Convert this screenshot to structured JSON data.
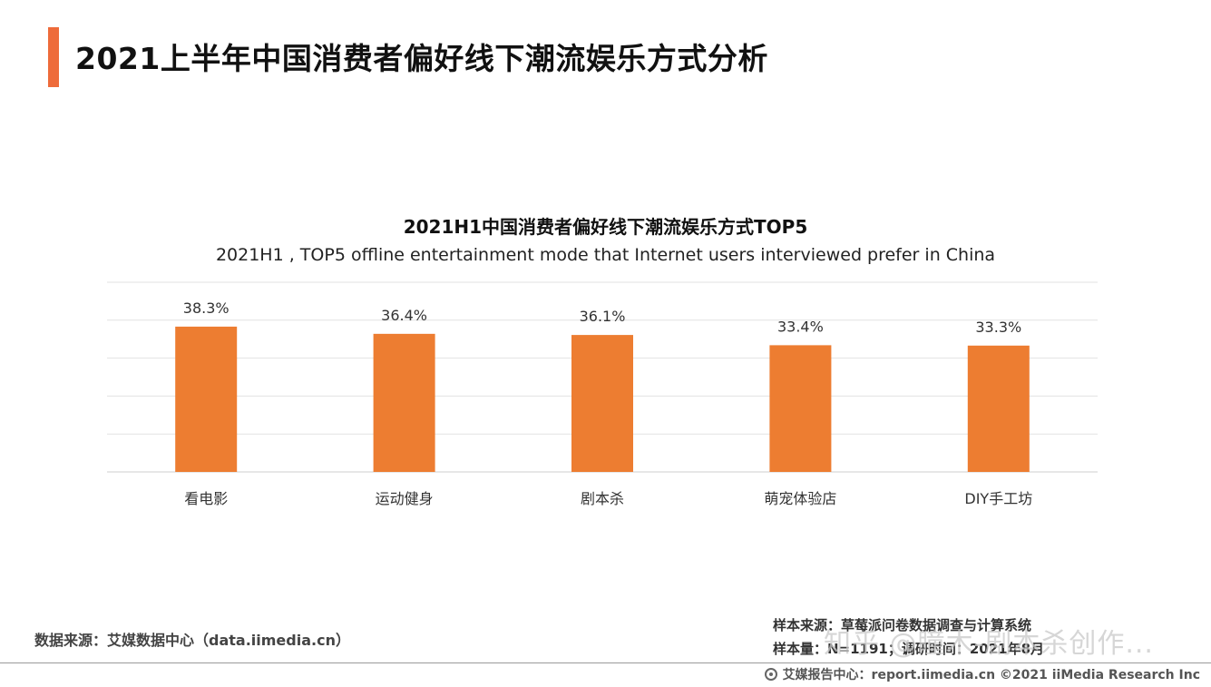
{
  "page": {
    "title": "2021上半年中国消费者偏好线下潮流娱乐方式分析",
    "accent_color": "#ee6b3a"
  },
  "chart_data": {
    "type": "bar",
    "title": "2021H1中国消费者偏好线下潮流娱乐方式TOP5",
    "subtitle": "2021H1 , TOP5 offline entertainment mode that Internet users interviewed prefer in China",
    "categories": [
      "看电影",
      "运动健身",
      "剧本杀",
      "萌宠体验店",
      "DIY手工坊"
    ],
    "values": [
      38.3,
      36.4,
      36.1,
      33.4,
      33.3
    ],
    "value_labels": [
      "38.3%",
      "36.4%",
      "36.1%",
      "33.4%",
      "33.3%"
    ],
    "unit": "%",
    "ylim": [
      0,
      50
    ],
    "grid": true,
    "bar_color": "#ed7d31"
  },
  "footer": {
    "source_left": "数据来源：艾媒数据中心（data.iimedia.cn）",
    "source_right_1": "样本来源：草莓派问卷数据调查与计算系统",
    "source_right_2": "样本量：N=1191；调研时间：2021年8月",
    "watermark": "知乎 @瞳木-剧本杀创作...",
    "credit": "艾媒报告中心：report.iimedia.cn  ©2021  iiMedia Research  Inc",
    "credit_icon": "globe-icon"
  }
}
